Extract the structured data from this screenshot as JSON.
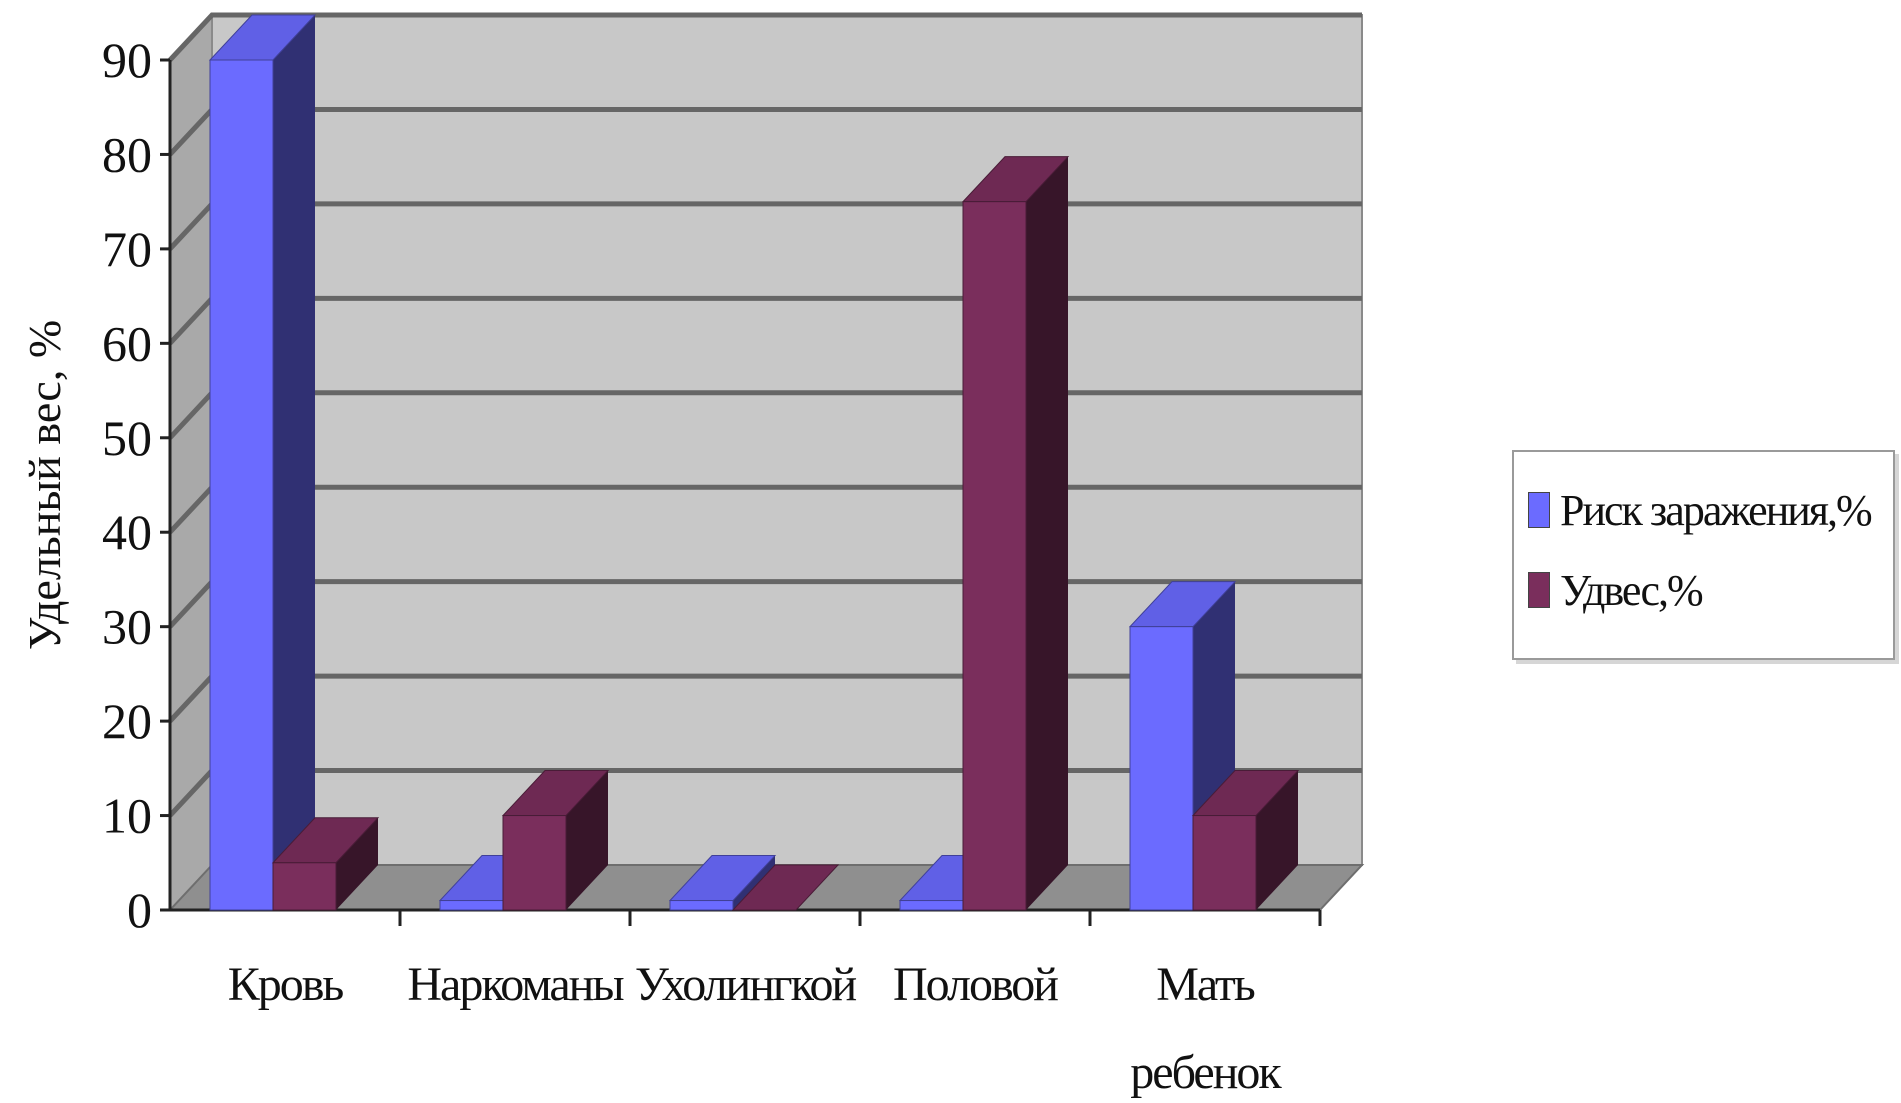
{
  "chart_data": {
    "type": "bar",
    "style": "3d-clustered-column",
    "ylabel": "Удельный вес, %",
    "xlabel": "",
    "ylim": [
      0,
      90
    ],
    "yticks": [
      0,
      10,
      20,
      30,
      40,
      50,
      60,
      70,
      80,
      90
    ],
    "grid": true,
    "legend_position": "right",
    "categories": [
      {
        "lines": [
          "Кровь"
        ]
      },
      {
        "lines": [
          "Наркоманы"
        ]
      },
      {
        "lines": [
          "Ухолингкой"
        ]
      },
      {
        "lines": [
          "Половой"
        ]
      },
      {
        "lines": [
          "Мать",
          "ребенок"
        ]
      }
    ],
    "series": [
      {
        "name": "Риск заражения,%",
        "color": "#6b6bff",
        "values": [
          90,
          1,
          1,
          1,
          30
        ]
      },
      {
        "name": "Удвес,%",
        "color": "#7a2e5c",
        "values": [
          5,
          10,
          0,
          75,
          10
        ]
      }
    ],
    "colors": {
      "plot_back": "#c8c8c8",
      "floor": "#8f8f8f",
      "grid": "#666666"
    }
  }
}
